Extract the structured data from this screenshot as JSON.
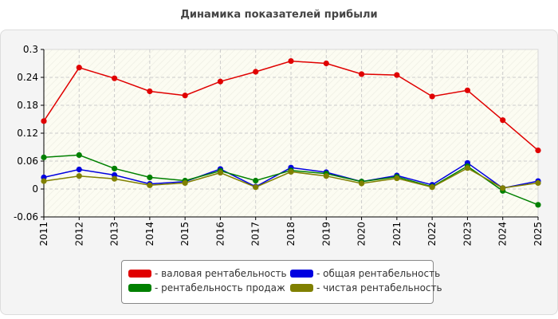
{
  "chart_data": {
    "type": "line",
    "title": "Динамика показателей прибыли",
    "xlabel": "",
    "ylabel": "",
    "x": [
      "2011",
      "2012",
      "2013",
      "2014",
      "2015",
      "2016",
      "2017",
      "2018",
      "2019",
      "2020",
      "2021",
      "2022",
      "2023",
      "2024",
      "2025"
    ],
    "ylim": [
      -0.06,
      0.3
    ],
    "yticks": [
      "0.3",
      "0.24",
      "0.18",
      "0.12",
      "0.06",
      "0",
      "-0.06"
    ],
    "grid": true,
    "legend_position": "bottom-center",
    "series": [
      {
        "name": "- валовая рентабельность",
        "color": "#e00000",
        "values": [
          0.146,
          0.261,
          0.238,
          0.21,
          0.201,
          0.231,
          0.252,
          0.275,
          0.27,
          0.247,
          0.245,
          0.199,
          0.212,
          0.148,
          0.083
        ]
      },
      {
        "name": "- общая рентабельность",
        "color": "#0000e0",
        "values": [
          0.025,
          0.042,
          0.03,
          0.011,
          0.016,
          0.043,
          0.005,
          0.046,
          0.036,
          0.016,
          0.029,
          0.009,
          0.056,
          0.002,
          0.017
        ]
      },
      {
        "name": "- рентабельность продаж",
        "color": "#008000",
        "values": [
          0.068,
          0.073,
          0.044,
          0.025,
          0.018,
          0.039,
          0.018,
          0.04,
          0.033,
          0.016,
          0.026,
          0.005,
          0.049,
          -0.004,
          -0.034
        ]
      },
      {
        "name": "- чистая рентабельность",
        "color": "#808000",
        "values": [
          0.017,
          0.028,
          0.022,
          0.008,
          0.013,
          0.035,
          0.004,
          0.037,
          0.028,
          0.012,
          0.023,
          0.004,
          0.045,
          0.002,
          0.013
        ]
      }
    ]
  }
}
